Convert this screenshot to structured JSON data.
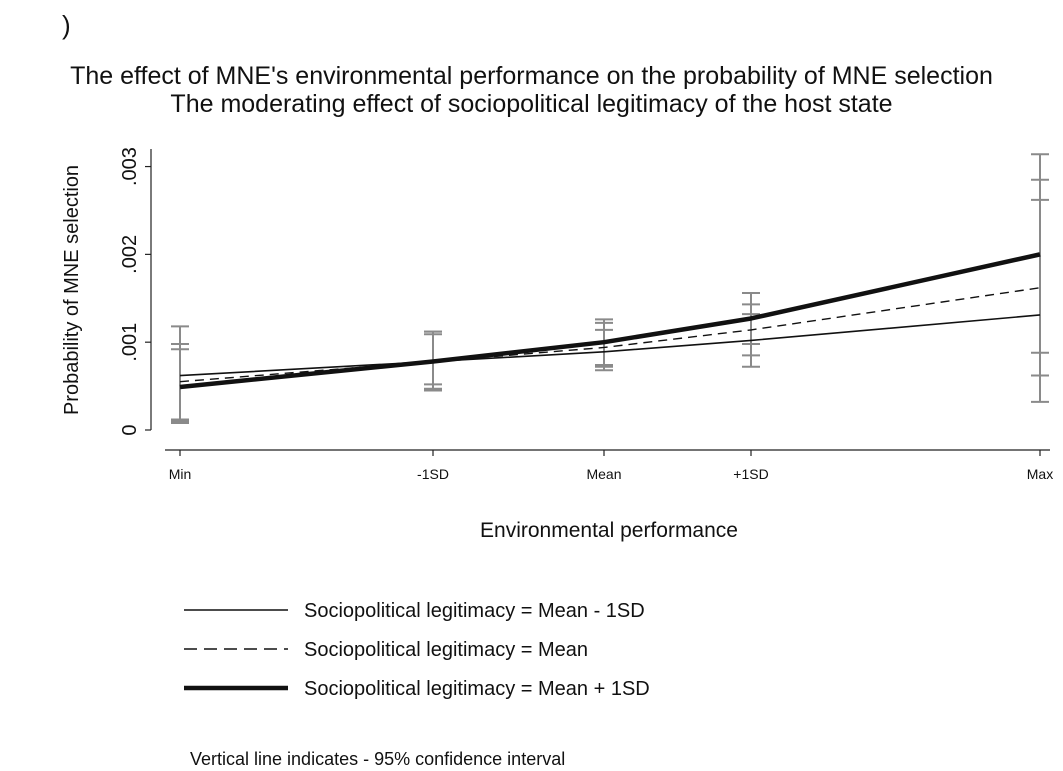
{
  "panel_mark": ")",
  "chart_data": {
    "type": "line",
    "title": "The effect of MNE's environmental performance on the probability of MNE selection",
    "subtitle": "The moderating effect of sociopolitical legitimacy of the host state",
    "xlabel": "Environmental performance",
    "ylabel": "Probability of MNE selection",
    "categories": [
      "Min",
      "-1SD",
      "Mean",
      "+1SD",
      "Max"
    ],
    "ylim": [
      0,
      0.0032
    ],
    "yticks": [
      0,
      0.001,
      0.002,
      0.003
    ],
    "ytick_labels": [
      "0",
      ".001",
      ".002",
      ".003"
    ],
    "grid": false,
    "legend_position": "bottom",
    "series": [
      {
        "name": "Sociopolitical legitimacy = Mean - 1SD",
        "style": "solid",
        "values": [
          0.00062,
          0.00078,
          0.00089,
          0.00102,
          0.00131
        ],
        "ci_low": [
          0.00012,
          0.00047,
          0.00068,
          0.00072,
          0.00032
        ],
        "ci_high": [
          0.00098,
          0.00109,
          0.00114,
          0.00132,
          0.00262
        ]
      },
      {
        "name": "Sociopolitical legitimacy = Mean",
        "style": "dashed",
        "values": [
          0.00055,
          0.00078,
          0.00094,
          0.00114,
          0.00162
        ],
        "ci_low": [
          0.0001,
          0.00052,
          0.00072,
          0.00085,
          0.00062
        ],
        "ci_high": [
          0.00092,
          0.00112,
          0.00122,
          0.00143,
          0.00285
        ]
      },
      {
        "name": "Sociopolitical legitimacy = Mean + 1SD",
        "style": "thick",
        "values": [
          0.00049,
          0.00078,
          0.001,
          0.00127,
          0.002
        ],
        "ci_low": [
          8e-05,
          0.00045,
          0.00074,
          0.00098,
          0.00088
        ],
        "ci_high": [
          0.00118,
          0.00112,
          0.00126,
          0.00156,
          0.00314
        ]
      }
    ],
    "note": "Vertical line indicates - 95% confidence interval"
  }
}
